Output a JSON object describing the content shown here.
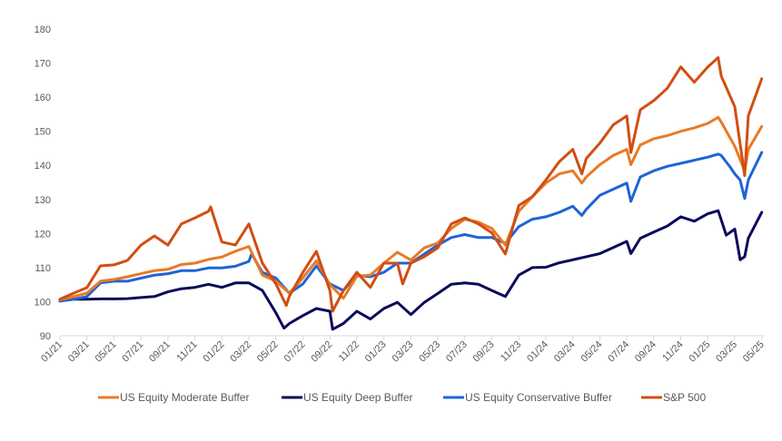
{
  "chart_data": {
    "type": "line",
    "title": "",
    "xlabel": "",
    "ylabel": "",
    "ylim": [
      90,
      180
    ],
    "yticks": [
      "90",
      "100",
      "110",
      "120",
      "130",
      "140",
      "150",
      "160",
      "170",
      "180"
    ],
    "xticks": [
      "01/21",
      "03/21",
      "05/21",
      "07/21",
      "09/21",
      "11/21",
      "01/22",
      "03/22",
      "05/22",
      "07/22",
      "09/22",
      "11/22",
      "01/23",
      "03/23",
      "05/23",
      "07/23",
      "09/23",
      "11/23",
      "01/24",
      "03/24",
      "05/24",
      "07/24",
      "09/24",
      "11/24",
      "01/25",
      "03/25",
      "05/25"
    ],
    "xtick_dates": [
      "2021-01-01",
      "2021-03-01",
      "2021-05-01",
      "2021-07-01",
      "2021-09-01",
      "2021-11-01",
      "2022-01-01",
      "2022-03-01",
      "2022-05-01",
      "2022-07-01",
      "2022-09-01",
      "2022-11-01",
      "2023-01-01",
      "2023-03-01",
      "2023-05-01",
      "2023-07-01",
      "2023-09-01",
      "2023-11-01",
      "2024-01-01",
      "2024-03-01",
      "2024-05-01",
      "2024-07-01",
      "2024-09-01",
      "2024-11-01",
      "2025-01-01",
      "2025-03-01",
      "2025-05-01"
    ],
    "grid": false,
    "legend_position": "bottom",
    "dates": [
      "2021-01-01",
      "2021-02-01",
      "2021-03-01",
      "2021-04-01",
      "2021-05-01",
      "2021-06-01",
      "2021-07-01",
      "2021-08-01",
      "2021-09-01",
      "2021-10-01",
      "2021-11-01",
      "2021-12-01",
      "2022-01-01",
      "2022-02-01",
      "2022-03-01",
      "2022-04-01",
      "2022-05-01",
      "2022-06-01",
      "2022-07-01",
      "2022-08-01",
      "2022-09-01",
      "2022-10-01",
      "2022-11-01",
      "2022-12-01",
      "2023-01-01",
      "2023-02-01",
      "2023-03-01",
      "2023-04-01",
      "2023-05-01",
      "2023-06-01",
      "2023-07-01",
      "2023-08-01",
      "2023-09-01",
      "2023-10-01",
      "2023-11-01",
      "2023-12-01",
      "2024-01-01",
      "2024-02-01",
      "2024-03-01",
      "2024-04-01",
      "2024-05-01",
      "2024-06-01",
      "2024-07-01",
      "2024-08-01",
      "2024-09-01",
      "2024-10-01",
      "2024-11-01",
      "2024-12-01",
      "2025-01-01",
      "2025-02-01",
      "2025-03-01",
      "2025-04-01",
      "2025-05-01"
    ],
    "series": [
      {
        "name": "US Equity Deep Buffer",
        "color": "#0B0B5C",
        "values": [
          100.2,
          100.7,
          100.7,
          100.8,
          100.8,
          100.9,
          101.2,
          101.5,
          102.9,
          103.8,
          104.2,
          105.1,
          104.2,
          105.5,
          105.5,
          103.3,
          96.7,
          93.6,
          95.9,
          98.0,
          97.2,
          93.6,
          97.2,
          94.9,
          98.0,
          99.8,
          96.2,
          99.8,
          102.4,
          105.1,
          105.5,
          105.1,
          103.3,
          101.5,
          107.8,
          110.0,
          110.1,
          111.4,
          112.3,
          113.2,
          114.1,
          115.9,
          117.7,
          118.6,
          120.4,
          122.2,
          124.9,
          123.6,
          125.8,
          124.0,
          121.3,
          118.6,
          126.2
        ],
        "intramonth": [
          [
            "2022-05-19",
            92.2
          ],
          [
            "2022-09-07",
            91.9
          ],
          [
            "2024-07-10",
            114.1
          ],
          [
            "2025-01-24",
            126.7
          ],
          [
            "2025-02-12",
            119.5
          ],
          [
            "2025-03-13",
            112.3
          ],
          [
            "2025-03-23",
            113.2
          ]
        ]
      },
      {
        "name": "US Equity Conservative Buffer",
        "color": "#1E64D6",
        "values": [
          100.2,
          100.7,
          101.5,
          105.5,
          106.0,
          106.0,
          106.9,
          107.8,
          108.2,
          109.1,
          109.1,
          109.9,
          109.9,
          110.4,
          111.8,
          108.6,
          106.9,
          102.5,
          105.2,
          110.5,
          105.2,
          103.3,
          107.8,
          107.3,
          108.6,
          111.3,
          111.3,
          114.0,
          116.6,
          118.8,
          119.7,
          118.8,
          118.8,
          117.1,
          122.0,
          124.2,
          124.9,
          126.2,
          128.0,
          127.1,
          131.2,
          133.0,
          134.8,
          136.6,
          138.4,
          139.7,
          140.6,
          141.5,
          142.4,
          142.9,
          137.5,
          135.7,
          143.8
        ],
        "intramonth": [
          [
            "2022-03-07",
            114.0
          ],
          [
            "2024-03-21",
            125.3
          ],
          [
            "2024-07-10",
            129.4
          ],
          [
            "2025-01-24",
            143.3
          ],
          [
            "2025-02-22",
            139.3
          ],
          [
            "2025-03-13",
            135.7
          ],
          [
            "2025-03-23",
            130.3
          ]
        ]
      },
      {
        "name": "US Equity Moderate Buffer",
        "color": "#E97A25",
        "values": [
          100.5,
          101.5,
          102.5,
          106.0,
          106.5,
          107.3,
          108.2,
          109.1,
          109.5,
          110.9,
          111.3,
          112.4,
          113.1,
          114.8,
          116.2,
          107.8,
          106.0,
          102.5,
          107.0,
          112.0,
          105.0,
          101.0,
          107.5,
          107.8,
          111.3,
          114.5,
          112.2,
          115.8,
          117.2,
          121.5,
          124.2,
          123.3,
          121.5,
          116.6,
          126.5,
          130.8,
          134.8,
          137.5,
          138.4,
          136.6,
          140.2,
          142.9,
          144.7,
          146.0,
          147.8,
          148.7,
          150.0,
          151.0,
          152.3,
          152.7,
          145.6,
          144.7,
          151.4
        ],
        "intramonth": [
          [
            "2024-03-21",
            134.8
          ],
          [
            "2024-07-10",
            140.2
          ],
          [
            "2025-01-24",
            154.1
          ],
          [
            "2025-03-23",
            138.4
          ]
        ]
      },
      {
        "name": "S&P 500",
        "color": "#D14E12",
        "values": [
          100.7,
          102.5,
          104.1,
          110.5,
          110.8,
          112.1,
          116.6,
          119.3,
          116.6,
          122.8,
          124.6,
          126.5,
          117.5,
          116.6,
          122.8,
          111.3,
          105.2,
          101.6,
          108.6,
          114.8,
          103.3,
          103.3,
          108.6,
          104.2,
          111.3,
          111.3,
          111.3,
          113.2,
          115.8,
          122.8,
          124.6,
          122.8,
          120.2,
          114.0,
          128.2,
          130.8,
          135.7,
          141.1,
          144.7,
          142.0,
          146.5,
          151.9,
          154.5,
          156.3,
          159.0,
          162.6,
          168.9,
          164.4,
          168.9,
          166.2,
          157.2,
          154.5,
          165.4
        ],
        "intramonth": [
          [
            "2021-12-06",
            127.8
          ],
          [
            "2022-05-24",
            98.9
          ],
          [
            "2022-09-07",
            97.2
          ],
          [
            "2023-02-13",
            105.2
          ],
          [
            "2024-03-21",
            137.5
          ],
          [
            "2024-07-10",
            143.8
          ],
          [
            "2025-01-24",
            171.6
          ],
          [
            "2025-03-23",
            137.0
          ]
        ]
      }
    ],
    "legend_order": [
      "US Equity Moderate Buffer",
      "US Equity Deep Buffer",
      "US Equity Conservative Buffer",
      "S&P 500"
    ]
  }
}
